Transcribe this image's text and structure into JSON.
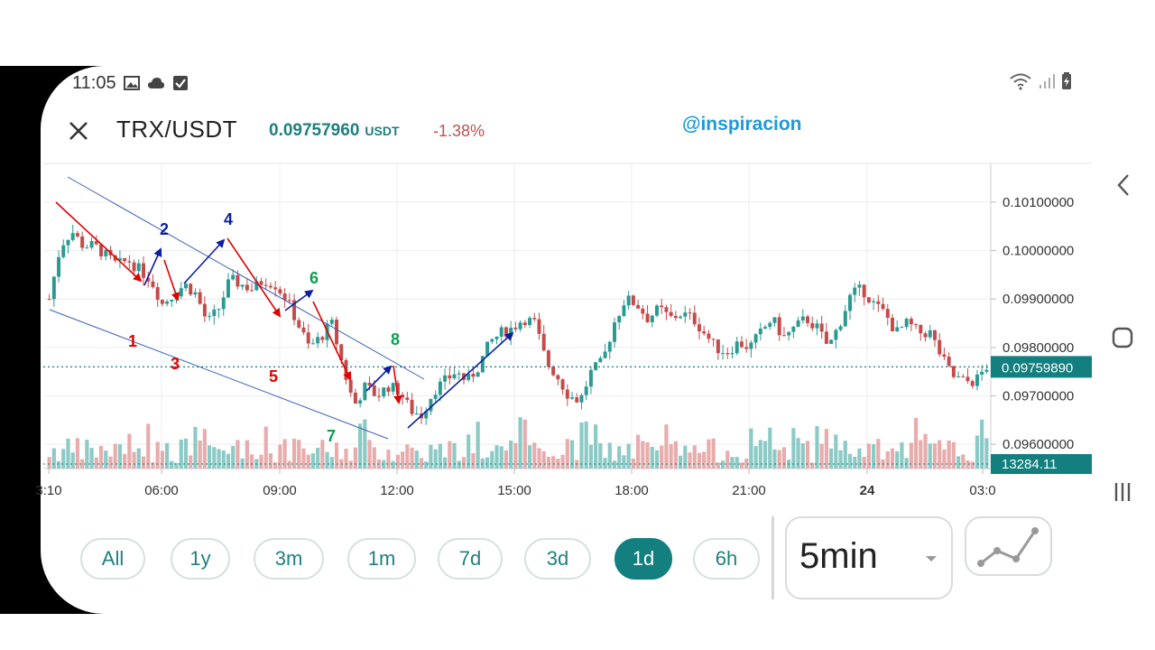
{
  "status_bar": {
    "time": "11:05"
  },
  "header": {
    "pair": "TRX/USDT",
    "price": "0.09757960",
    "price_unit": "USDT",
    "change": "-1.38%",
    "watermark": "@inspiracion"
  },
  "colors": {
    "teal": "#137f7f",
    "up": "#2a9a93",
    "down": "#c64a4a",
    "wave_red": "#e00000",
    "wave_blue": "#0b1fa0",
    "wave_green": "#0aa050"
  },
  "chart_data": {
    "type": "candlestick",
    "y_tick_labels": [
      "0.10100000",
      "0.10000000",
      "0.09900000",
      "0.09800000",
      "0.09700000",
      "0.09600000"
    ],
    "y_ticks": [
      0.101,
      0.1,
      0.099,
      0.098,
      0.097,
      0.096
    ],
    "ylim": [
      0.0955,
      0.1018
    ],
    "x_tick_labels": [
      "3:10",
      "06:00",
      "09:00",
      "12:00",
      "15:00",
      "18:00",
      "21:00",
      "24",
      "03:0"
    ],
    "current_price_label": "0.09759890",
    "current_price": 0.0975989,
    "volume_label": "13284.11",
    "close_path": [
      [
        0,
        0.099
      ],
      [
        1,
        0.1001
      ],
      [
        2,
        0.1004
      ],
      [
        3,
        0.1001
      ],
      [
        4,
        0.1001
      ],
      [
        5,
        0.0999
      ],
      [
        6,
        0.0997
      ],
      [
        7,
        0.0998
      ],
      [
        8,
        0.0996
      ],
      [
        9,
        0.0994
      ],
      [
        10,
        0.0989
      ],
      [
        11,
        0.0991
      ],
      [
        12,
        0.0993
      ],
      [
        13,
        0.0991
      ],
      [
        14,
        0.0985
      ],
      [
        15,
        0.0988
      ],
      [
        16,
        0.0994
      ],
      [
        17,
        0.0993
      ],
      [
        18,
        0.0992
      ],
      [
        19,
        0.0994
      ],
      [
        20,
        0.0993
      ],
      [
        21,
        0.099
      ],
      [
        22,
        0.0985
      ],
      [
        23,
        0.098
      ],
      [
        24,
        0.0982
      ],
      [
        25,
        0.0985
      ],
      [
        26,
        0.0976
      ],
      [
        27,
        0.0968
      ],
      [
        28,
        0.0972
      ],
      [
        29,
        0.097
      ],
      [
        30,
        0.0972
      ],
      [
        31,
        0.0971
      ],
      [
        32,
        0.0967
      ],
      [
        33,
        0.0966
      ],
      [
        34,
        0.0971
      ],
      [
        35,
        0.0973
      ],
      [
        36,
        0.0975
      ],
      [
        37,
        0.0973
      ],
      [
        38,
        0.0976
      ],
      [
        39,
        0.0981
      ],
      [
        40,
        0.0983
      ],
      [
        41,
        0.0984
      ],
      [
        42,
        0.0986
      ],
      [
        43,
        0.0985
      ],
      [
        44,
        0.0977
      ],
      [
        45,
        0.0974
      ],
      [
        46,
        0.097
      ],
      [
        47,
        0.0969
      ],
      [
        48,
        0.0975
      ],
      [
        49,
        0.0977
      ],
      [
        50,
        0.0985
      ],
      [
        51,
        0.099
      ],
      [
        52,
        0.0989
      ],
      [
        53,
        0.0986
      ],
      [
        54,
        0.0988
      ],
      [
        55,
        0.0986
      ],
      [
        56,
        0.0987
      ],
      [
        57,
        0.0986
      ],
      [
        58,
        0.0983
      ],
      [
        59,
        0.098
      ],
      [
        60,
        0.0979
      ],
      [
        61,
        0.0981
      ],
      [
        62,
        0.098
      ],
      [
        63,
        0.0983
      ],
      [
        64,
        0.0986
      ],
      [
        65,
        0.0982
      ],
      [
        66,
        0.0984
      ],
      [
        67,
        0.0986
      ],
      [
        68,
        0.0984
      ],
      [
        69,
        0.098
      ],
      [
        70,
        0.0985
      ],
      [
        71,
        0.0991
      ],
      [
        72,
        0.0992
      ],
      [
        73,
        0.0989
      ],
      [
        74,
        0.0987
      ],
      [
        75,
        0.0983
      ],
      [
        76,
        0.0985
      ],
      [
        77,
        0.0983
      ],
      [
        78,
        0.0983
      ],
      [
        79,
        0.0978
      ],
      [
        80,
        0.0974
      ],
      [
        81,
        0.0973
      ],
      [
        82,
        0.0973
      ],
      [
        83,
        0.0976
      ]
    ],
    "wave_labels": [
      "1",
      "2",
      "3",
      "4",
      "5",
      "6",
      "7",
      "8"
    ]
  },
  "ranges": [
    {
      "label": "All",
      "active": false
    },
    {
      "label": "1y",
      "active": false
    },
    {
      "label": "3m",
      "active": false
    },
    {
      "label": "1m",
      "active": false
    },
    {
      "label": "7d",
      "active": false
    },
    {
      "label": "3d",
      "active": false
    },
    {
      "label": "1d",
      "active": true
    },
    {
      "label": "6h",
      "active": false
    }
  ],
  "interval": {
    "value": "5min"
  }
}
